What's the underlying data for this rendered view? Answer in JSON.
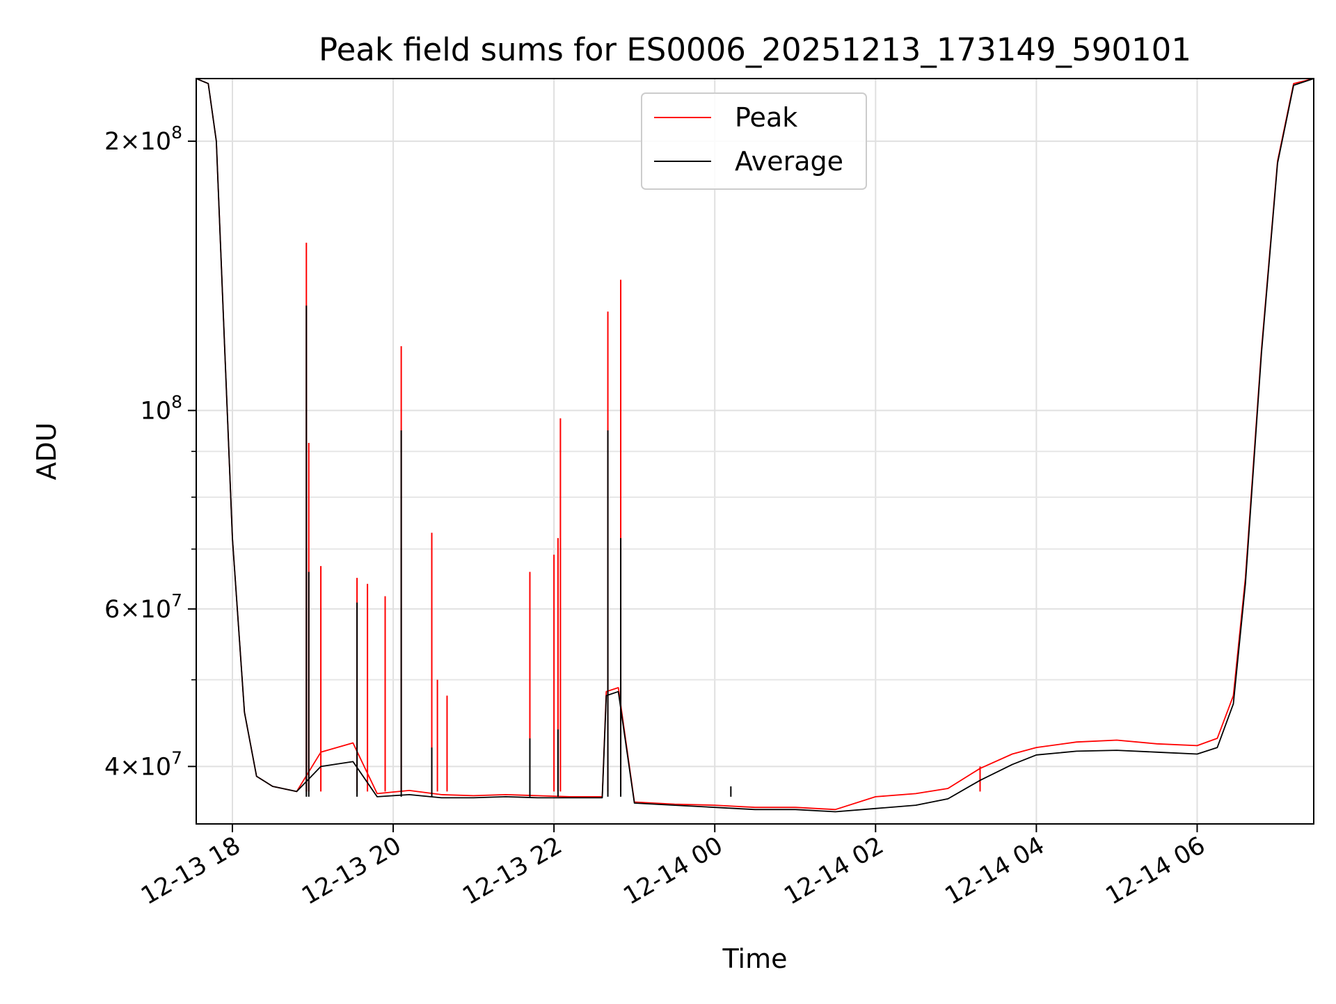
{
  "chart_data": {
    "type": "line",
    "title": "Peak field sums for ES0006_20251213_173149_590101",
    "xlabel": "Time",
    "ylabel": "ADU",
    "yscale": "log",
    "xlim_hours": [
      -0.45,
      13.45
    ],
    "ylim": [
      34500000,
      235000000
    ],
    "grid": true,
    "legend_position": "top-center",
    "x_reference": "12-13 18:00 = hour 0",
    "x_ticks": [
      {
        "hour": 0,
        "label": "12-13 18"
      },
      {
        "hour": 2,
        "label": "12-13 20"
      },
      {
        "hour": 4,
        "label": "12-13 22"
      },
      {
        "hour": 6,
        "label": "12-14 00"
      },
      {
        "hour": 8,
        "label": "12-14 02"
      },
      {
        "hour": 10,
        "label": "12-14 04"
      },
      {
        "hour": 12,
        "label": "12-14 06"
      }
    ],
    "y_ticks": [
      {
        "value": 40000000,
        "mantissa": "4",
        "exponent": "7"
      },
      {
        "value": 60000000,
        "mantissa": "6",
        "exponent": "7"
      },
      {
        "value": 100000000,
        "mantissa": "",
        "exponent": "8"
      },
      {
        "value": 200000000,
        "mantissa": "2",
        "exponent": "8"
      }
    ],
    "y_minor_ticks": [
      50000000,
      70000000,
      80000000,
      90000000
    ],
    "series": [
      {
        "name": "Peak",
        "color": "#ff0000",
        "x": [
          -0.45,
          -0.3,
          -0.2,
          -0.1,
          0,
          0.15,
          0.3,
          0.5,
          0.8,
          1.1,
          1.5,
          1.8,
          2.2,
          2.6,
          3,
          3.4,
          3.8,
          4.2,
          4.6,
          4.65,
          4.8,
          5.0,
          5.5,
          6,
          6.5,
          7,
          7.5,
          8,
          8.5,
          8.9,
          9.3,
          9.7,
          10,
          10.5,
          11,
          11.5,
          12,
          12.25,
          12.45,
          12.6,
          12.8,
          13.0,
          13.2,
          13.45
        ],
        "y": [
          235000000,
          232000000,
          200000000,
          120000000,
          72000000,
          46000000,
          39000000,
          38000000,
          37500000,
          41500000,
          42500000,
          37300000,
          37600000,
          37200000,
          37100000,
          37200000,
          37100000,
          37000000,
          37000000,
          48500000,
          49000000,
          36500000,
          36300000,
          36200000,
          36000000,
          36000000,
          35800000,
          37000000,
          37300000,
          37800000,
          39800000,
          41300000,
          42000000,
          42600000,
          42800000,
          42400000,
          42200000,
          43000000,
          48000000,
          65000000,
          117000000,
          190000000,
          232000000,
          235000000
        ]
      },
      {
        "name": "Average",
        "color": "#000000",
        "x": [
          -0.45,
          -0.3,
          -0.2,
          -0.1,
          0,
          0.15,
          0.3,
          0.5,
          0.8,
          1.1,
          1.5,
          1.8,
          2.2,
          2.6,
          3,
          3.4,
          3.8,
          4.2,
          4.6,
          4.65,
          4.8,
          5.0,
          5.5,
          6,
          6.5,
          7,
          7.5,
          8,
          8.5,
          8.9,
          9.3,
          9.7,
          10,
          10.5,
          11,
          11.5,
          12,
          12.25,
          12.45,
          12.6,
          12.8,
          13.0,
          13.2,
          13.45
        ],
        "y": [
          235000000,
          232000000,
          200000000,
          120000000,
          72000000,
          46000000,
          39000000,
          38000000,
          37500000,
          40000000,
          40500000,
          37000000,
          37200000,
          36900000,
          36900000,
          37000000,
          36900000,
          36900000,
          36900000,
          48000000,
          48500000,
          36400000,
          36200000,
          36000000,
          35800000,
          35800000,
          35600000,
          35900000,
          36200000,
          36800000,
          38600000,
          40200000,
          41200000,
          41600000,
          41700000,
          41500000,
          41300000,
          42000000,
          47000000,
          64000000,
          116000000,
          189000000,
          231000000,
          235000000
        ]
      }
    ],
    "spikes": {
      "peak": [
        {
          "hour": 0.92,
          "value": 154000000
        },
        {
          "hour": 0.95,
          "value": 92000000
        },
        {
          "hour": 1.1,
          "value": 67000000
        },
        {
          "hour": 1.55,
          "value": 65000000
        },
        {
          "hour": 1.68,
          "value": 64000000
        },
        {
          "hour": 1.9,
          "value": 62000000
        },
        {
          "hour": 2.1,
          "value": 118000000
        },
        {
          "hour": 2.48,
          "value": 73000000
        },
        {
          "hour": 2.55,
          "value": 50000000
        },
        {
          "hour": 2.67,
          "value": 48000000
        },
        {
          "hour": 3.7,
          "value": 66000000
        },
        {
          "hour": 4.0,
          "value": 69000000
        },
        {
          "hour": 4.05,
          "value": 72000000
        },
        {
          "hour": 4.08,
          "value": 98000000
        },
        {
          "hour": 4.67,
          "value": 129000000
        },
        {
          "hour": 4.83,
          "value": 140000000
        },
        {
          "hour": 9.3,
          "value": 40000000
        }
      ],
      "average": [
        {
          "hour": 0.92,
          "value": 131000000
        },
        {
          "hour": 0.95,
          "value": 66000000
        },
        {
          "hour": 1.55,
          "value": 61000000
        },
        {
          "hour": 2.1,
          "value": 95000000
        },
        {
          "hour": 2.48,
          "value": 42000000
        },
        {
          "hour": 3.7,
          "value": 43000000
        },
        {
          "hour": 4.05,
          "value": 44000000
        },
        {
          "hour": 4.67,
          "value": 95000000
        },
        {
          "hour": 4.83,
          "value": 72000000
        },
        {
          "hour": 6.2,
          "value": 38000000
        }
      ]
    }
  }
}
